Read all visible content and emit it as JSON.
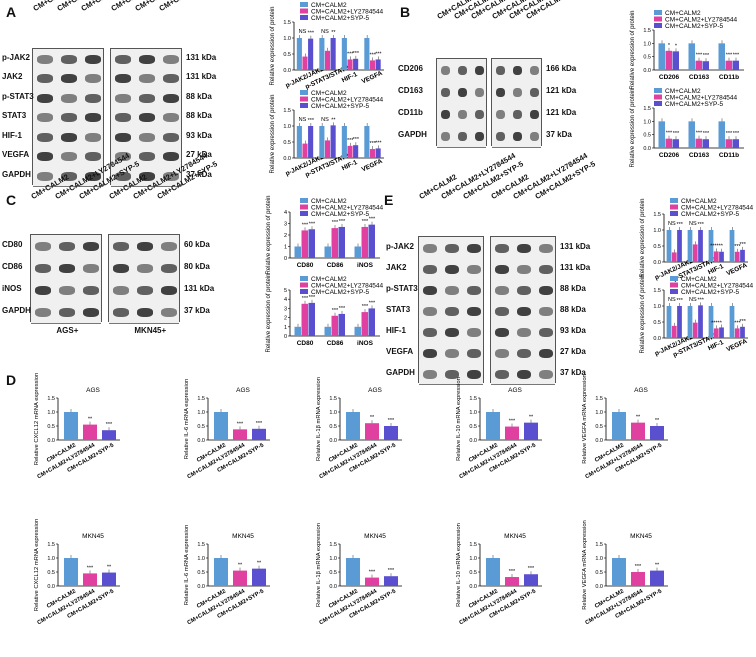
{
  "panels": {
    "A": {
      "letter": "A",
      "lane_headers_left": [
        "CM+CALM2",
        "CM+CALM2+LY2784544",
        "CM+CALM2+SYP-5"
      ],
      "lane_headers_right": [
        "CM+CALM2",
        "CM+CALM2+LY2784544",
        "CM+CALM2+SYP-5"
      ],
      "rows": [
        {
          "name": "p-JAK2",
          "kda": "131 kDa"
        },
        {
          "name": "JAK2",
          "kda": "131 kDa"
        },
        {
          "name": "p-STAT3",
          "kda": "88 kDa"
        },
        {
          "name": "STAT3",
          "kda": "88 kDa"
        },
        {
          "name": "HIF-1",
          "kda": "93 kDa"
        },
        {
          "name": "VEGFA",
          "kda": "27 kDa"
        },
        {
          "name": "GAPDH",
          "kda": "37 kDa"
        }
      ]
    },
    "B": {
      "letter": "B",
      "lane_headers": [
        "CM+CALM2",
        "CM+CALM2+LY2784544",
        "CM+CALM2+SYP-5",
        "CM+CALM2",
        "CM+CALM2+LY2784544",
        "CM+CALM2+SYP-5"
      ],
      "rows": [
        {
          "name": "CD206",
          "kda": "166 kDa"
        },
        {
          "name": "CD163",
          "kda": "121 kDa"
        },
        {
          "name": "CD11b",
          "kda": "121 kDa"
        },
        {
          "name": "GAPDH",
          "kda": "37 kDa"
        }
      ]
    },
    "C": {
      "letter": "C",
      "lane_headers": [
        "CM+CALM2",
        "CM+CALM2+LY2784544",
        "CM+CALM2+SYP-5",
        "CM+CALM2",
        "CM+CALM2+LY2784544",
        "CM+CALM2+SYP-5"
      ],
      "rows": [
        {
          "name": "CD80",
          "kda": "60 kDa"
        },
        {
          "name": "CD86",
          "kda": "80 kDa"
        },
        {
          "name": "iNOS",
          "kda": "131 kDa"
        },
        {
          "name": "GAPDH",
          "kda": "37 kDa"
        }
      ],
      "bottom_labels": [
        "AGS+",
        "MKN45+"
      ]
    },
    "E": {
      "letter": "E",
      "lane_headers": [
        "CM+CALM2",
        "CM+CALM2+LY2784544",
        "CM+CALM2+SYP-5",
        "CM+CALM2",
        "CM+CALM2+LY2784544",
        "CM+CALM2+SYP-5"
      ],
      "rows": [
        {
          "name": "p-JAK2",
          "kda": "131 kDa"
        },
        {
          "name": "JAK2",
          "kda": "131 kDa"
        },
        {
          "name": "p-STAT3",
          "kda": "88 kDa"
        },
        {
          "name": "STAT3",
          "kda": "88 kDa"
        },
        {
          "name": "HIF-1",
          "kda": "93 kDa"
        },
        {
          "name": "VEGFA",
          "kda": "27 kDa"
        },
        {
          "name": "GAPDH",
          "kda": "37 kDa"
        }
      ]
    },
    "D": {
      "letter": "D"
    }
  },
  "colors": {
    "blue": "#5b9bd5",
    "magenta": "#e040a0",
    "purple": "#5a4fcf"
  },
  "chart_data": [
    {
      "id": "A1",
      "type": "bar",
      "legend": [
        "CM+CALM2",
        "CM+CALM2+LY2784544",
        "CM+CALM2+SYP-5"
      ],
      "ylabel": "Relative expression of protein",
      "ylim": [
        0,
        1.5
      ],
      "yticks": [
        "0.0",
        "0.5",
        "1.0",
        "1.5"
      ],
      "categories": [
        "p-JAK2/JAK2",
        "p-STAT3/STAT3",
        "HIF-1",
        "VEGFA"
      ],
      "series": [
        {
          "name": "CM+CALM2",
          "values": [
            1,
            1,
            1,
            1
          ]
        },
        {
          "name": "CM+CALM2+LY2784544",
          "values": [
            0.42,
            0.6,
            0.33,
            0.3
          ]
        },
        {
          "name": "CM+CALM2+SYP-5",
          "values": [
            0.98,
            1.0,
            0.35,
            0.33
          ]
        }
      ],
      "annotations": [
        [
          "NS",
          "***"
        ],
        [
          "NS",
          "**"
        ],
        [
          "***",
          "***"
        ],
        [
          "***",
          "***"
        ]
      ]
    },
    {
      "id": "A2",
      "type": "bar",
      "legend": [
        "CM+CALM2",
        "CM+CALM2+LY2784544",
        "CM+CALM2+SYP-5"
      ],
      "ylabel": "Relative expression of protein",
      "ylim": [
        0,
        1.5
      ],
      "yticks": [
        "0.0",
        "0.5",
        "1.0",
        "1.5"
      ],
      "categories": [
        "p-JAK2/JAK2",
        "p-STAT3/STAT3",
        "HIF-1",
        "VEGFA"
      ],
      "series": [
        {
          "name": "CM+CALM2",
          "values": [
            1,
            1,
            1,
            1
          ]
        },
        {
          "name": "CM+CALM2+LY2784544",
          "values": [
            0.45,
            0.55,
            0.38,
            0.28
          ]
        },
        {
          "name": "CM+CALM2+SYP-5",
          "values": [
            1.0,
            1.02,
            0.4,
            0.3
          ]
        }
      ],
      "annotations": [
        [
          "NS",
          "***"
        ],
        [
          "NS",
          "**"
        ],
        [
          "***",
          "***"
        ],
        [
          "***",
          "***"
        ]
      ]
    },
    {
      "id": "B1",
      "type": "bar",
      "legend": [
        "CM+CALM2",
        "CM+CALM2+LY2784544",
        "CM+CALM2+SYP-5"
      ],
      "ylabel": "Relative expression of protein",
      "ylim": [
        0,
        1.5
      ],
      "yticks": [
        "0.0",
        "0.5",
        "1.0",
        "1.5"
      ],
      "categories": [
        "CD206",
        "CD163",
        "CD11b"
      ],
      "series": [
        {
          "name": "CM+CALM2",
          "values": [
            1,
            1,
            1
          ]
        },
        {
          "name": "CM+CALM2+LY2784544",
          "values": [
            0.72,
            0.35,
            0.35
          ]
        },
        {
          "name": "CM+CALM2+SYP-5",
          "values": [
            0.7,
            0.33,
            0.35
          ]
        }
      ],
      "annotations": [
        [
          "*",
          "*"
        ],
        [
          "***",
          "***"
        ],
        [
          "***",
          "***"
        ]
      ]
    },
    {
      "id": "B2",
      "type": "bar",
      "legend": [
        "CM+CALM2",
        "CM+CALM2+LY2784544",
        "CM+CALM2+SYP-5"
      ],
      "ylabel": "Relative expression of protein",
      "ylim": [
        0,
        1.5
      ],
      "yticks": [
        "0.0",
        "0.5",
        "1.0",
        "1.5"
      ],
      "categories": [
        "CD206",
        "CD163",
        "CD11b"
      ],
      "series": [
        {
          "name": "CM+CALM2",
          "values": [
            1,
            1,
            1
          ]
        },
        {
          "name": "CM+CALM2+LY2784544",
          "values": [
            0.35,
            0.35,
            0.33
          ]
        },
        {
          "name": "CM+CALM2+SYP-5",
          "values": [
            0.33,
            0.33,
            0.33
          ]
        }
      ],
      "annotations": [
        [
          "***",
          "***"
        ],
        [
          "***",
          "***"
        ],
        [
          "***",
          "***"
        ]
      ]
    },
    {
      "id": "C1",
      "type": "bar",
      "legend": [
        "CM+CALM2",
        "CM+CALM2+LY2784544",
        "CM+CALM2+SYP-5"
      ],
      "ylabel": "Relative expression of protein",
      "ylim": [
        0,
        4
      ],
      "yticks": [
        "0",
        "1",
        "2",
        "3",
        "4"
      ],
      "categories": [
        "CD80",
        "CD86",
        "iNOS"
      ],
      "series": [
        {
          "name": "CM+CALM2",
          "values": [
            1,
            1,
            1
          ]
        },
        {
          "name": "CM+CALM2+LY2784544",
          "values": [
            2.4,
            2.6,
            2.7
          ]
        },
        {
          "name": "CM+CALM2+SYP-5",
          "values": [
            2.5,
            2.7,
            2.9
          ]
        }
      ],
      "annotations": [
        [
          "***",
          "***"
        ],
        [
          "***",
          "***"
        ],
        [
          "***",
          "***"
        ]
      ]
    },
    {
      "id": "C2",
      "type": "bar",
      "legend": [
        "CM+CALM2",
        "CM+CALM2+LY2784544",
        "CM+CALM2+SYP-5"
      ],
      "ylabel": "Relative expression of protein",
      "ylim": [
        0,
        5
      ],
      "yticks": [
        "0",
        "1",
        "2",
        "3",
        "4",
        "5"
      ],
      "categories": [
        "CD80",
        "CD86",
        "iNOS"
      ],
      "series": [
        {
          "name": "CM+CALM2",
          "values": [
            1,
            1,
            1
          ]
        },
        {
          "name": "CM+CALM2+LY2784544",
          "values": [
            3.5,
            2.2,
            2.6
          ]
        },
        {
          "name": "CM+CALM2+SYP-5",
          "values": [
            3.6,
            2.4,
            3.0
          ]
        }
      ],
      "annotations": [
        [
          "***",
          "***"
        ],
        [
          "***",
          "***"
        ],
        [
          "***",
          "***"
        ]
      ]
    },
    {
      "id": "E1",
      "type": "bar",
      "legend": [
        "CM+CALM2",
        "CM+CALM2+LY2784544",
        "CM+CALM2+SYP-5"
      ],
      "ylabel": "Relative expression of protein",
      "ylim": [
        0,
        1.5
      ],
      "yticks": [
        "0.0",
        "0.5",
        "1.0",
        "1.5"
      ],
      "categories": [
        "p-JAK2/JAK2",
        "p-STAT3/STAT3",
        "HIF-1",
        "VEGFA"
      ],
      "series": [
        {
          "name": "CM+CALM2",
          "values": [
            1,
            1,
            1,
            1
          ]
        },
        {
          "name": "CM+CALM2+LY2784544",
          "values": [
            0.3,
            0.55,
            0.33,
            0.32
          ]
        },
        {
          "name": "CM+CALM2+SYP-5",
          "values": [
            1.0,
            1.0,
            0.32,
            0.38
          ]
        }
      ],
      "annotations": [
        [
          "NS",
          "***"
        ],
        [
          "NS",
          "***"
        ],
        [
          "******",
          ""
        ],
        [
          "***",
          "***"
        ]
      ]
    },
    {
      "id": "E2",
      "type": "bar",
      "legend": [
        "CM+CALM2",
        "CM+CALM2+LY2784544",
        "CM+CALM2+SYP-5"
      ],
      "ylabel": "Relative expression of protein",
      "ylim": [
        0,
        1.5
      ],
      "yticks": [
        "0.0",
        "0.5",
        "1.0",
        "1.5"
      ],
      "categories": [
        "p-JAK2/JAK2",
        "p-STAT3/STAT3",
        "HIF-1",
        "VEGFA"
      ],
      "series": [
        {
          "name": "CM+CALM2",
          "values": [
            1,
            1,
            1,
            1
          ]
        },
        {
          "name": "CM+CALM2+LY2784544",
          "values": [
            0.38,
            0.48,
            0.3,
            0.3
          ]
        },
        {
          "name": "CM+CALM2+SYP-5",
          "values": [
            1.0,
            1.02,
            0.33,
            0.35
          ]
        }
      ],
      "annotations": [
        [
          "NS",
          "***"
        ],
        [
          "NS",
          "***"
        ],
        [
          "*****",
          ""
        ],
        [
          "***",
          "***"
        ]
      ]
    },
    {
      "id": "D1",
      "type": "bar",
      "title": "AGS",
      "ylabel": "Relative CXCL12 mRNA expression",
      "ylim": [
        0,
        1.5
      ],
      "yticks": [
        "0.0",
        "0.5",
        "1.0",
        "1.5"
      ],
      "categories": [
        "CM+CALM2",
        "CM+CALM2+LY2784544",
        "CM+CALM2+SYP-5"
      ],
      "values": [
        1,
        0.55,
        0.35
      ],
      "annotations": [
        "",
        "**",
        "***"
      ]
    },
    {
      "id": "D2",
      "type": "bar",
      "title": "AGS",
      "ylabel": "Relative IL-6 mRNA expression",
      "ylim": [
        0,
        1.5
      ],
      "yticks": [
        "0.0",
        "0.5",
        "1.0",
        "1.5"
      ],
      "categories": [
        "CM+CALM2",
        "CM+CALM2+LY2784544",
        "CM+CALM2+SYP-5"
      ],
      "values": [
        1,
        0.38,
        0.4
      ],
      "annotations": [
        "",
        "***",
        "***"
      ]
    },
    {
      "id": "D3",
      "type": "bar",
      "title": "AGS",
      "ylabel": "Relative IL-1β mRNA expression",
      "ylim": [
        0,
        1.5
      ],
      "yticks": [
        "0.0",
        "0.5",
        "1.0",
        "1.5"
      ],
      "categories": [
        "CM+CALM2",
        "CM+CALM2+LY2784544",
        "CM+CALM2+SYP-5"
      ],
      "values": [
        1,
        0.6,
        0.5
      ],
      "annotations": [
        "",
        "**",
        "***"
      ]
    },
    {
      "id": "D4",
      "type": "bar",
      "title": "AGS",
      "ylabel": "Relative IL-10 mRNA expression",
      "ylim": [
        0,
        1.5
      ],
      "yticks": [
        "0.0",
        "0.5",
        "1.0",
        "1.5"
      ],
      "categories": [
        "CM+CALM2",
        "CM+CALM2+LY2784544",
        "CM+CALM2+SYP-5"
      ],
      "values": [
        1,
        0.48,
        0.62
      ],
      "annotations": [
        "",
        "***",
        "**"
      ]
    },
    {
      "id": "D5",
      "type": "bar",
      "title": "AGS",
      "ylabel": "Relative VEGFA mRNA expression",
      "ylim": [
        0,
        1.5
      ],
      "yticks": [
        "0.0",
        "0.5",
        "1.0",
        "1.5"
      ],
      "categories": [
        "CM+CALM2",
        "CM+CALM2+LY2784544",
        "CM+CALM2+SYP-5"
      ],
      "values": [
        1,
        0.62,
        0.5
      ],
      "annotations": [
        "",
        "**",
        "**"
      ]
    },
    {
      "id": "D6",
      "type": "bar",
      "title": "MKN45",
      "ylabel": "Relative CXCL12 mRNA expression",
      "ylim": [
        0,
        1.5
      ],
      "yticks": [
        "0.0",
        "0.5",
        "1.0",
        "1.5"
      ],
      "categories": [
        "CM+CALM2",
        "CM+CALM2+LY2784544",
        "CM+CALM2+SYP-5"
      ],
      "values": [
        1,
        0.45,
        0.48
      ],
      "annotations": [
        "",
        "***",
        "**"
      ]
    },
    {
      "id": "D7",
      "type": "bar",
      "title": "MKN45",
      "ylabel": "Relative IL-6 mRNA expression",
      "ylim": [
        0,
        1.5
      ],
      "yticks": [
        "0.0",
        "0.5",
        "1.0",
        "1.5"
      ],
      "categories": [
        "CM+CALM2",
        "CM+CALM2+LY2784544",
        "CM+CALM2+SYP-5"
      ],
      "values": [
        1,
        0.55,
        0.62
      ],
      "annotations": [
        "",
        "**",
        "**"
      ]
    },
    {
      "id": "D8",
      "type": "bar",
      "title": "MKN45",
      "ylabel": "Relative IL-1β mRNA expression",
      "ylim": [
        0,
        1.5
      ],
      "yticks": [
        "0.0",
        "0.5",
        "1.0",
        "1.5"
      ],
      "categories": [
        "CM+CALM2",
        "CM+CALM2+LY2784544",
        "CM+CALM2+SYP-5"
      ],
      "values": [
        1,
        0.3,
        0.35
      ],
      "annotations": [
        "",
        "***",
        "***"
      ]
    },
    {
      "id": "D9",
      "type": "bar",
      "title": "MKN45",
      "ylabel": "Relative IL-10 mRNA expression",
      "ylim": [
        0,
        1.5
      ],
      "yticks": [
        "0.0",
        "0.5",
        "1.0",
        "1.5"
      ],
      "categories": [
        "CM+CALM2",
        "CM+CALM2+LY2784544",
        "CM+CALM2+SYP-5"
      ],
      "values": [
        1,
        0.32,
        0.42
      ],
      "annotations": [
        "",
        "***",
        "***"
      ]
    },
    {
      "id": "D10",
      "type": "bar",
      "title": "MKN45",
      "ylabel": "Relative VEGFA mRNA expression",
      "ylim": [
        0,
        1.5
      ],
      "yticks": [
        "0.0",
        "0.5",
        "1.0",
        "1.5"
      ],
      "categories": [
        "CM+CALM2",
        "CM+CALM2+LY2784544",
        "CM+CALM2+SYP-5"
      ],
      "values": [
        1,
        0.5,
        0.55
      ],
      "annotations": [
        "",
        "***",
        "**"
      ]
    }
  ]
}
